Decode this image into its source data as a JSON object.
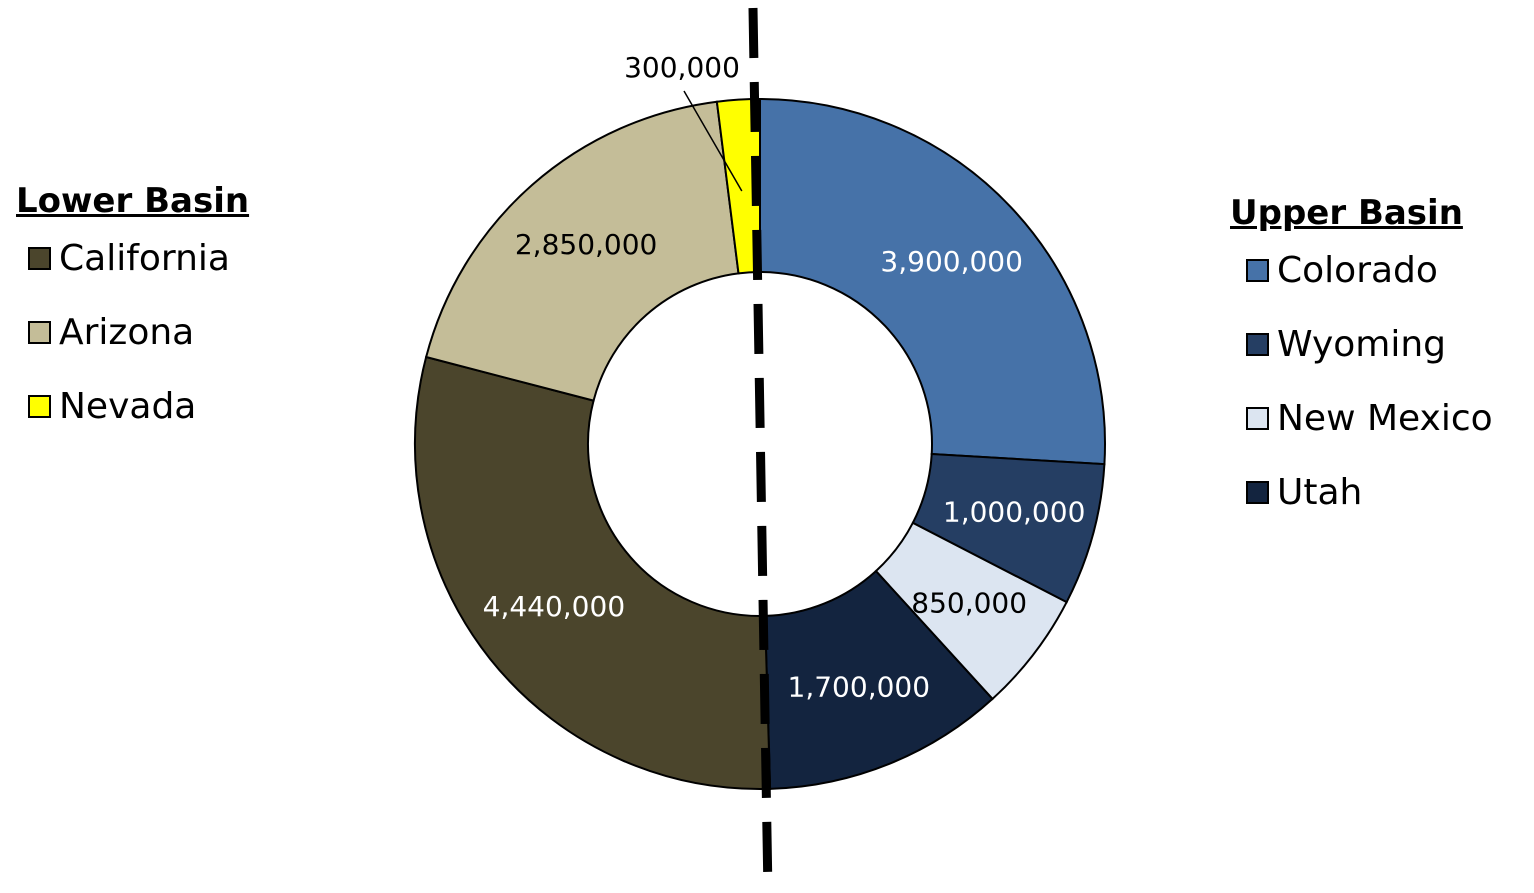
{
  "chart_data": {
    "type": "pie",
    "title": "",
    "groups": [
      {
        "name": "Lower Basin",
        "items": [
          {
            "label": "California",
            "value": 4440000,
            "display": "4,440,000",
            "color": "#4b452c"
          },
          {
            "label": "Arizona",
            "value": 2850000,
            "display": "2,850,000",
            "color": "#c4bd98"
          },
          {
            "label": "Nevada",
            "value": 300000,
            "display": "300,000",
            "color": "#ffff00"
          }
        ]
      },
      {
        "name": "Upper Basin",
        "items": [
          {
            "label": "Colorado",
            "value": 3900000,
            "display": "3,900,000",
            "color": "#4672a8"
          },
          {
            "label": "Wyoming",
            "value": 1000000,
            "display": "1,000,000",
            "color": "#253e63"
          },
          {
            "label": "New Mexico",
            "value": 850000,
            "display": "850,000",
            "color": "#dce5f1"
          },
          {
            "label": "Utah",
            "value": 1700000,
            "display": "1,700,000",
            "color": "#13243f"
          }
        ]
      }
    ],
    "slice_order": [
      "Colorado",
      "Wyoming",
      "New Mexico",
      "Utah",
      "California",
      "Arizona",
      "Nevada"
    ],
    "legend": [
      "left",
      "right"
    ],
    "divider": "dashed vertical line between Upper Basin and Lower Basin"
  }
}
